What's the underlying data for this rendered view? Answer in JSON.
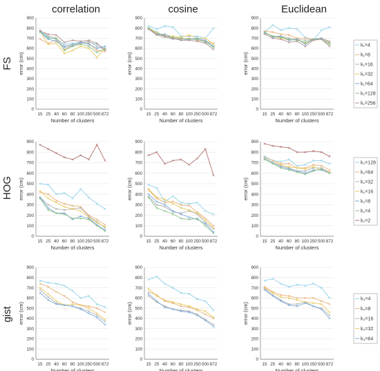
{
  "figure": {
    "column_titles": [
      "correlation",
      "cosine",
      "Euclidean"
    ],
    "row_labels": [
      "FS",
      "HOG",
      "gist"
    ]
  },
  "legends": [
    {
      "row": 0,
      "entries": [
        "k₁=4",
        "k₁=8",
        "k₁=16",
        "k₁=32",
        "k₁=64",
        "k₁=128",
        "k₁=256"
      ],
      "colors": [
        "#8fd0e6",
        "#e6b07a",
        "#b0b0b0",
        "#e8c860",
        "#7aa8d8",
        "#88c088",
        "#b09090"
      ]
    },
    {
      "row": 1,
      "entries": [
        "k₂=128",
        "k₂=64",
        "k₂=32",
        "k₂=16",
        "k₂=8",
        "k₂=4",
        "k₂=2"
      ],
      "colors": [
        "#8fd0e6",
        "#e6b07a",
        "#b0b0b0",
        "#e8c860",
        "#7aa8d8",
        "#88c088",
        "#b07070"
      ]
    },
    {
      "row": 2,
      "entries": [
        "k₃=4",
        "k₃=8",
        "k₃=16",
        "k₃=32",
        "k₃=64"
      ],
      "colors": [
        "#8fd0e6",
        "#e6b07a",
        "#b0b0b0",
        "#e8c860",
        "#7aa8d8"
      ]
    }
  ],
  "chart_data": [
    {
      "type": "line",
      "row": 0,
      "col": 0,
      "title": "correlation",
      "xlabel": "Number of clusters",
      "ylabel": "error (cm)",
      "categories": [
        "15",
        "25",
        "40",
        "60",
        "80",
        "100",
        "250",
        "500",
        "872"
      ],
      "ylim": [
        0,
        900
      ],
      "yticks": [
        "0",
        "100",
        "200",
        "300",
        "400",
        "500",
        "600",
        "700",
        "800",
        "900"
      ],
      "series": [
        {
          "values": [
            770,
            710,
            690,
            640,
            650,
            660,
            660,
            640,
            600
          ]
        },
        {
          "values": [
            690,
            650,
            680,
            590,
            630,
            650,
            650,
            580,
            570
          ]
        },
        {
          "values": [
            780,
            720,
            700,
            620,
            640,
            650,
            670,
            620,
            590
          ]
        },
        {
          "values": [
            770,
            640,
            650,
            550,
            580,
            620,
            600,
            510,
            600
          ]
        },
        {
          "values": [
            760,
            690,
            670,
            610,
            630,
            660,
            640,
            600,
            620
          ]
        },
        {
          "values": [
            760,
            700,
            700,
            580,
            620,
            640,
            620,
            560,
            600
          ]
        },
        {
          "values": [
            770,
            740,
            730,
            660,
            680,
            670,
            680,
            650,
            580
          ]
        }
      ]
    },
    {
      "type": "line",
      "row": 0,
      "col": 1,
      "title": "cosine",
      "xlabel": "Number of clusters",
      "ylabel": "error (cm)",
      "categories": [
        "15",
        "25",
        "40",
        "60",
        "80",
        "100",
        "250",
        "500",
        "872"
      ],
      "ylim": [
        0,
        900
      ],
      "yticks": [
        "0",
        "100",
        "200",
        "300",
        "400",
        "500",
        "600",
        "700",
        "800",
        "900"
      ],
      "series": [
        {
          "values": [
            820,
            790,
            820,
            810,
            720,
            720,
            720,
            700,
            800
          ]
        },
        {
          "values": [
            800,
            740,
            720,
            700,
            690,
            700,
            680,
            670,
            650
          ]
        },
        {
          "values": [
            790,
            730,
            710,
            690,
            700,
            690,
            690,
            660,
            620
          ]
        },
        {
          "values": [
            800,
            750,
            730,
            720,
            710,
            730,
            700,
            700,
            640
          ]
        },
        {
          "values": [
            790,
            740,
            740,
            700,
            680,
            690,
            700,
            680,
            620
          ]
        },
        {
          "values": [
            800,
            760,
            720,
            710,
            700,
            690,
            690,
            670,
            610
          ]
        },
        {
          "values": [
            790,
            740,
            720,
            700,
            680,
            680,
            670,
            650,
            590
          ]
        }
      ]
    },
    {
      "type": "line",
      "row": 0,
      "col": 2,
      "title": "Euclidean",
      "xlabel": "Number of clusters",
      "ylabel": "error (cm)",
      "categories": [
        "15",
        "25",
        "40",
        "60",
        "80",
        "100",
        "250",
        "500",
        "872"
      ],
      "ylim": [
        0,
        900
      ],
      "yticks": [
        "0",
        "100",
        "200",
        "300",
        "400",
        "500",
        "600",
        "700",
        "800",
        "900"
      ],
      "series": [
        {
          "values": [
            760,
            830,
            780,
            800,
            790,
            710,
            680,
            780,
            810
          ]
        },
        {
          "values": [
            770,
            760,
            740,
            730,
            700,
            700,
            690,
            700,
            670
          ]
        },
        {
          "values": [
            750,
            720,
            720,
            700,
            690,
            680,
            690,
            690,
            640
          ]
        },
        {
          "values": [
            760,
            720,
            700,
            680,
            690,
            650,
            680,
            690,
            650
          ]
        },
        {
          "values": [
            760,
            710,
            720,
            680,
            690,
            640,
            690,
            700,
            660
          ]
        },
        {
          "values": [
            750,
            720,
            710,
            690,
            680,
            660,
            690,
            690,
            640
          ]
        },
        {
          "values": [
            740,
            700,
            690,
            660,
            670,
            620,
            680,
            690,
            620
          ]
        }
      ]
    },
    {
      "type": "line",
      "row": 1,
      "col": 0,
      "title": "",
      "xlabel": "Number of clusters",
      "ylabel": "error (cm)",
      "categories": [
        "15",
        "25",
        "40",
        "60",
        "80",
        "100",
        "250",
        "500",
        "872"
      ],
      "ylim": [
        0,
        900
      ],
      "yticks": [
        "0",
        "100",
        "200",
        "300",
        "400",
        "500",
        "600",
        "700",
        "800",
        "900"
      ],
      "series": [
        {
          "values": [
            500,
            490,
            400,
            410,
            360,
            450,
            370,
            310,
            260
          ]
        },
        {
          "values": [
            420,
            400,
            340,
            310,
            290,
            280,
            200,
            160,
            110
          ]
        },
        {
          "values": [
            370,
            300,
            260,
            250,
            260,
            270,
            190,
            140,
            80
          ]
        },
        {
          "values": [
            430,
            360,
            320,
            280,
            260,
            240,
            180,
            130,
            90
          ]
        },
        {
          "values": [
            370,
            270,
            220,
            220,
            160,
            190,
            170,
            110,
            60
          ]
        },
        {
          "values": [
            360,
            250,
            220,
            210,
            170,
            170,
            160,
            100,
            50
          ]
        },
        {
          "values": [
            870,
            830,
            790,
            750,
            730,
            770,
            730,
            870,
            720
          ]
        }
      ]
    },
    {
      "type": "line",
      "row": 1,
      "col": 1,
      "title": "",
      "xlabel": "Number of clusters",
      "ylabel": "error (cm)",
      "categories": [
        "15",
        "25",
        "40",
        "60",
        "80",
        "100",
        "250",
        "500",
        "872"
      ],
      "ylim": [
        0,
        900
      ],
      "yticks": [
        "0",
        "100",
        "200",
        "300",
        "400",
        "500",
        "600",
        "700",
        "800",
        "900"
      ],
      "series": [
        {
          "values": [
            490,
            460,
            330,
            380,
            320,
            310,
            320,
            240,
            210
          ]
        },
        {
          "values": [
            440,
            360,
            320,
            330,
            300,
            290,
            230,
            170,
            100
          ]
        },
        {
          "values": [
            380,
            300,
            280,
            230,
            220,
            240,
            210,
            130,
            70
          ]
        },
        {
          "values": [
            450,
            370,
            350,
            310,
            270,
            250,
            220,
            150,
            80
          ]
        },
        {
          "values": [
            400,
            330,
            300,
            240,
            210,
            180,
            160,
            120,
            40
          ]
        },
        {
          "values": [
            370,
            270,
            240,
            210,
            170,
            160,
            170,
            100,
            30
          ]
        },
        {
          "values": [
            770,
            800,
            690,
            720,
            730,
            680,
            740,
            830,
            580
          ]
        }
      ]
    },
    {
      "type": "line",
      "row": 1,
      "col": 2,
      "title": "",
      "xlabel": "Number of clusters",
      "ylabel": "error (cm)",
      "categories": [
        "15",
        "25",
        "40",
        "60",
        "80",
        "100",
        "250",
        "500",
        "872"
      ],
      "ylim": [
        0,
        900
      ],
      "yticks": [
        "0",
        "100",
        "200",
        "300",
        "400",
        "500",
        "600",
        "700",
        "800",
        "900"
      ],
      "series": [
        {
          "values": [
            760,
            720,
            710,
            730,
            670,
            680,
            720,
            720,
            690
          ]
        },
        {
          "values": [
            750,
            720,
            690,
            690,
            650,
            650,
            680,
            670,
            630
          ]
        },
        {
          "values": [
            740,
            700,
            670,
            650,
            620,
            620,
            650,
            650,
            610
          ]
        },
        {
          "values": [
            740,
            700,
            680,
            660,
            650,
            640,
            660,
            630,
            610
          ]
        },
        {
          "values": [
            740,
            700,
            660,
            640,
            620,
            600,
            630,
            630,
            600
          ]
        },
        {
          "values": [
            730,
            690,
            650,
            630,
            610,
            590,
            620,
            640,
            600
          ]
        },
        {
          "values": [
            880,
            860,
            850,
            840,
            800,
            800,
            810,
            800,
            760
          ]
        }
      ]
    },
    {
      "type": "line",
      "row": 2,
      "col": 0,
      "title": "",
      "xlabel": "Number of clusters",
      "ylabel": "error (cm)",
      "categories": [
        "15",
        "25",
        "40",
        "60",
        "80",
        "100",
        "250",
        "500",
        "872"
      ],
      "ylim": [
        0,
        900
      ],
      "yticks": [
        "0",
        "100",
        "200",
        "300",
        "400",
        "500",
        "600",
        "700",
        "800",
        "900"
      ],
      "series": [
        {
          "values": [
            770,
            750,
            740,
            720,
            670,
            600,
            620,
            540,
            510
          ]
        },
        {
          "values": [
            740,
            710,
            660,
            620,
            560,
            530,
            520,
            500,
            460
          ]
        },
        {
          "values": [
            680,
            610,
            550,
            530,
            520,
            500,
            470,
            430,
            370
          ]
        },
        {
          "values": [
            700,
            640,
            570,
            530,
            540,
            530,
            500,
            450,
            390
          ]
        },
        {
          "values": [
            650,
            580,
            540,
            530,
            520,
            490,
            450,
            410,
            340
          ]
        }
      ]
    },
    {
      "type": "line",
      "row": 2,
      "col": 1,
      "title": "",
      "xlabel": "Number of clusters",
      "ylabel": "error (cm)",
      "categories": [
        "15",
        "25",
        "40",
        "60",
        "80",
        "100",
        "250",
        "500",
        "872"
      ],
      "ylim": [
        0,
        900
      ],
      "yticks": [
        "0",
        "100",
        "200",
        "300",
        "400",
        "500",
        "600",
        "700",
        "800",
        "900"
      ],
      "series": [
        {
          "values": [
            780,
            810,
            740,
            700,
            650,
            640,
            590,
            570,
            480
          ]
        },
        {
          "values": [
            660,
            630,
            570,
            550,
            520,
            510,
            480,
            440,
            400
          ]
        },
        {
          "values": [
            620,
            560,
            520,
            490,
            480,
            470,
            440,
            390,
            340
          ]
        },
        {
          "values": [
            690,
            620,
            580,
            560,
            540,
            520,
            490,
            470,
            410
          ]
        },
        {
          "values": [
            640,
            570,
            510,
            490,
            470,
            460,
            430,
            380,
            320
          ]
        }
      ]
    },
    {
      "type": "line",
      "row": 2,
      "col": 2,
      "title": "",
      "xlabel": "Number of clusters",
      "ylabel": "error (cm)",
      "categories": [
        "15",
        "25",
        "40",
        "60",
        "80",
        "100",
        "250",
        "500",
        "872"
      ],
      "ylim": [
        0,
        900
      ],
      "yticks": [
        "0",
        "100",
        "200",
        "300",
        "400",
        "500",
        "600",
        "700",
        "800",
        "900"
      ],
      "series": [
        {
          "values": [
            770,
            790,
            740,
            710,
            730,
            720,
            740,
            700,
            600
          ]
        },
        {
          "values": [
            710,
            660,
            630,
            620,
            600,
            600,
            600,
            570,
            540
          ]
        },
        {
          "values": [
            690,
            630,
            580,
            540,
            540,
            560,
            520,
            500,
            430
          ]
        },
        {
          "values": [
            700,
            650,
            610,
            600,
            580,
            560,
            550,
            540,
            460
          ]
        },
        {
          "values": [
            680,
            620,
            570,
            530,
            520,
            550,
            520,
            490,
            400
          ]
        }
      ]
    }
  ]
}
